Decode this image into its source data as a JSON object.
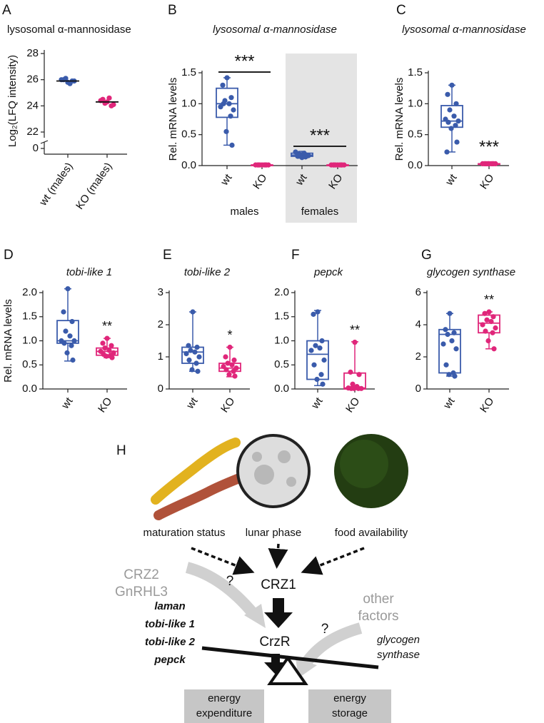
{
  "chart_data": [
    {
      "type": "dot",
      "panel": "A",
      "title": "lysosomal α-mannosidase",
      "title_italic": false,
      "ylabel": "Log₂(LFQ intensity)",
      "categories": [
        "wt (males)",
        "KO (males)"
      ],
      "colors": [
        "#3a5bab",
        "#e0267a"
      ],
      "points": [
        [
          25.8,
          26.0,
          25.9,
          26.1,
          25.7,
          26.0,
          25.9
        ],
        [
          24.3,
          24.5,
          24.0,
          24.2,
          24.6,
          24.4,
          24.1
        ]
      ],
      "means": [
        25.9,
        24.3
      ],
      "ylim": [
        22,
        28
      ],
      "yticks": [
        0,
        22,
        24,
        26,
        28
      ],
      "axis_break": true
    },
    {
      "type": "box",
      "panel": "B",
      "title": "lysosomal α-mannosidase",
      "title_italic": true,
      "ylabel": "Rel. mRNA levels",
      "categories": [
        "wt",
        "KO",
        "wt",
        "KO"
      ],
      "colors": [
        "#3a5bab",
        "#e0267a",
        "#3a5bab",
        "#e0267a"
      ],
      "group_labels": [
        "males",
        "females"
      ],
      "shaded_groups": [
        false,
        true
      ],
      "bracket": true,
      "points": [
        [
          1.42,
          1.3,
          1.1,
          1.05,
          1.0,
          0.95,
          0.9,
          1.0,
          0.8,
          0.55,
          0.33
        ],
        [
          0.01,
          0.01,
          0.01,
          0.01,
          0.01,
          0.01,
          0.01,
          0.01,
          0.01
        ],
        [
          0.13,
          0.15,
          0.17,
          0.18,
          0.2,
          0.22,
          0.16,
          0.19,
          0.14
        ],
        [
          0.01,
          0.01,
          0.01,
          0.01,
          0.01,
          0.01,
          0.01,
          0.01,
          0.01
        ]
      ],
      "boxes": [
        {
          "min": 0.33,
          "q1": 0.78,
          "median": 1.0,
          "q3": 1.25,
          "max": 1.42
        },
        {
          "min": 0.0,
          "q1": 0.0,
          "median": 0.01,
          "q3": 0.01,
          "max": 0.02
        },
        {
          "min": 0.12,
          "q1": 0.15,
          "median": 0.17,
          "q3": 0.2,
          "max": 0.23
        },
        {
          "min": 0.0,
          "q1": 0.0,
          "median": 0.01,
          "q3": 0.01,
          "max": 0.02
        }
      ],
      "significance": [
        null,
        "***",
        null,
        "***"
      ],
      "ylim": [
        0,
        1.5
      ],
      "yticks": [
        {
          "value": 0,
          "label": "0.0"
        },
        0.5,
        {
          "value": 1,
          "label": "1.0"
        },
        1.5
      ]
    },
    {
      "type": "box",
      "panel": "C",
      "title": "lysosomal α-mannosidase",
      "title_italic": true,
      "ylabel": "Rel. mRNA levels",
      "categories": [
        "wt",
        "KO"
      ],
      "colors": [
        "#3a5bab",
        "#e0267a"
      ],
      "bracket": false,
      "points": [
        [
          1.3,
          1.15,
          1.0,
          0.9,
          0.8,
          0.75,
          0.72,
          0.7,
          0.65,
          0.6,
          0.38,
          0.22
        ],
        [
          0.03,
          0.03,
          0.03,
          0.03,
          0.03,
          0.03,
          0.03,
          0.03,
          0.03,
          0.03
        ]
      ],
      "boxes": [
        {
          "min": 0.22,
          "q1": 0.62,
          "median": 0.72,
          "q3": 0.97,
          "max": 1.3
        },
        {
          "min": 0.02,
          "q1": 0.02,
          "median": 0.03,
          "q3": 0.03,
          "max": 0.04
        }
      ],
      "significance": [
        null,
        "***"
      ],
      "ylim": [
        0,
        1.5
      ],
      "yticks": [
        {
          "value": 0,
          "label": "0.0"
        },
        0.5,
        {
          "value": 1,
          "label": "1.0"
        },
        1.5
      ]
    },
    {
      "type": "box",
      "panel": "D",
      "title": "tobi-like 1",
      "title_italic": true,
      "ylabel": "Rel. mRNA levels",
      "categories": [
        "wt",
        "KO"
      ],
      "colors": [
        "#3a5bab",
        "#e0267a"
      ],
      "bracket": false,
      "points": [
        [
          2.08,
          1.6,
          1.4,
          1.2,
          1.1,
          1.0,
          1.0,
          0.95,
          0.9,
          0.75,
          0.6
        ],
        [
          1.05,
          0.95,
          0.9,
          0.85,
          0.8,
          0.78,
          0.75,
          0.72,
          0.7,
          0.68,
          0.65
        ]
      ],
      "boxes": [
        {
          "min": 0.58,
          "q1": 0.95,
          "median": 1.0,
          "q3": 1.42,
          "max": 2.08
        },
        {
          "min": 0.65,
          "q1": 0.7,
          "median": 0.78,
          "q3": 0.85,
          "max": 1.05
        }
      ],
      "significance": [
        null,
        "**"
      ],
      "ylim": [
        0,
        2
      ],
      "yticks": [
        {
          "value": 0,
          "label": "0.0"
        },
        0.5,
        {
          "value": 1,
          "label": "1.0"
        },
        1.5,
        {
          "value": 2,
          "label": "2.0"
        }
      ]
    },
    {
      "type": "box",
      "panel": "E",
      "title": "tobi-like 2",
      "title_italic": true,
      "categories": [
        "wt",
        "KO"
      ],
      "colors": [
        "#3a5bab",
        "#e0267a"
      ],
      "bracket": false,
      "points": [
        [
          2.4,
          1.35,
          1.3,
          1.2,
          1.15,
          1.1,
          1.0,
          0.9,
          0.8,
          0.6,
          0.55
        ],
        [
          1.3,
          1.0,
          0.9,
          0.8,
          0.75,
          0.7,
          0.65,
          0.6,
          0.55,
          0.45,
          0.4
        ]
      ],
      "boxes": [
        {
          "min": 0.55,
          "q1": 0.8,
          "median": 1.15,
          "q3": 1.3,
          "max": 2.4
        },
        {
          "min": 0.38,
          "q1": 0.55,
          "median": 0.65,
          "q3": 0.8,
          "max": 1.3
        }
      ],
      "significance": [
        null,
        "*"
      ],
      "ylim": [
        0,
        3
      ],
      "yticks": [
        0,
        1,
        2,
        3
      ]
    },
    {
      "type": "box",
      "panel": "F",
      "title": "pepck",
      "title_italic": true,
      "categories": [
        "wt",
        "KO"
      ],
      "colors": [
        "#3a5bab",
        "#e0267a"
      ],
      "bracket": false,
      "points": [
        [
          1.6,
          1.55,
          1.0,
          0.9,
          0.85,
          0.8,
          0.6,
          0.5,
          0.3,
          0.2,
          0.1
        ],
        [
          0.97,
          0.35,
          0.3,
          0.1,
          0.05,
          0.02,
          0.01,
          0.01,
          0.01,
          0.01
        ]
      ],
      "boxes": [
        {
          "min": 0.07,
          "q1": 0.2,
          "median": 0.72,
          "q3": 1.0,
          "max": 1.63
        },
        {
          "min": 0.0,
          "q1": 0.0,
          "median": 0.02,
          "q3": 0.33,
          "max": 0.98
        }
      ],
      "significance": [
        null,
        "**"
      ],
      "ylim": [
        0,
        2
      ],
      "yticks": [
        {
          "value": 0,
          "label": "0.0"
        },
        0.5,
        {
          "value": 1,
          "label": "1.0"
        },
        1.5,
        {
          "value": 2,
          "label": "2.0"
        }
      ]
    },
    {
      "type": "box",
      "panel": "G",
      "title": "glycogen synthase",
      "title_italic": true,
      "categories": [
        "wt",
        "KO"
      ],
      "colors": [
        "#3a5bab",
        "#e0267a"
      ],
      "bracket": false,
      "points": [
        [
          4.7,
          3.7,
          3.5,
          3.4,
          3.0,
          2.8,
          2.5,
          1.5,
          1.0,
          0.9,
          0.8
        ],
        [
          4.8,
          4.7,
          4.5,
          4.3,
          4.2,
          4.0,
          3.8,
          3.6,
          3.5,
          3.0,
          2.5
        ]
      ],
      "boxes": [
        {
          "min": 0.8,
          "q1": 1.0,
          "median": 3.4,
          "q3": 3.7,
          "max": 4.7
        },
        {
          "min": 2.5,
          "q1": 3.5,
          "median": 4.1,
          "q3": 4.6,
          "max": 4.8
        }
      ],
      "significance": [
        null,
        "**"
      ],
      "ylim": [
        0,
        6
      ],
      "yticks": [
        0,
        2,
        4,
        6
      ]
    }
  ],
  "diagram": {
    "panel": "H",
    "inputs": [
      "maturation status",
      "lunar phase",
      "food availability"
    ],
    "hormone": "CRZ1",
    "other_hormones": [
      "CRZ2",
      "GnRHL3"
    ],
    "unknown": "?",
    "receptor": "CrzR",
    "other_factors": [
      "other",
      "factors"
    ],
    "left_genes": [
      "laman",
      "tobi-like 1",
      "tobi-like 2",
      "pepck"
    ],
    "right_genes": [
      "glycogen",
      "synthase"
    ],
    "left_box": [
      "energy",
      "expenditure"
    ],
    "right_box": [
      "energy",
      "storage"
    ]
  }
}
